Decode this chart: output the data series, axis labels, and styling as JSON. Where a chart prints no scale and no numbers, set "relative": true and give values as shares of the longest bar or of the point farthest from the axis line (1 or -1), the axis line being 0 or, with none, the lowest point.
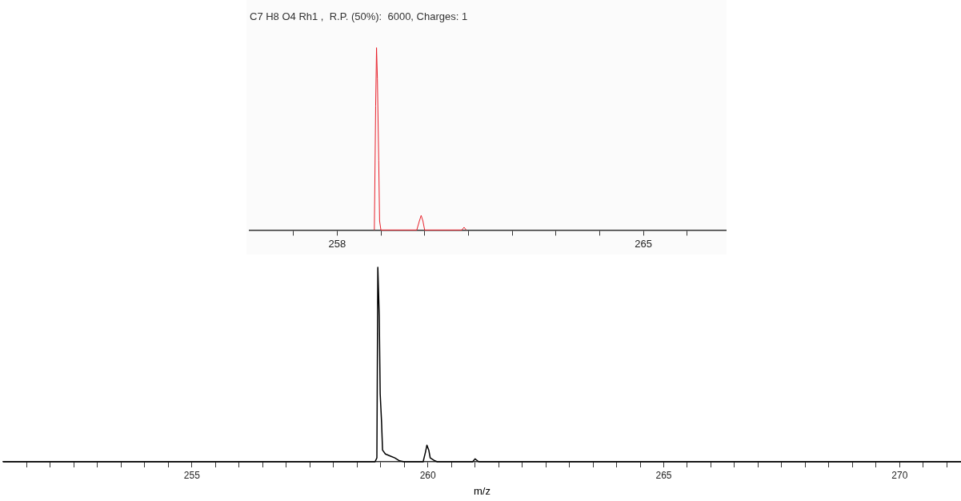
{
  "chart_data": [
    {
      "type": "line",
      "title": "C7 H8 O4 Rh1 ,  R.P. (50%):  6000, Charges: 1",
      "relative": true,
      "xlim": [
        256.0,
        266.9
      ],
      "xticks": [
        {
          "value": 257,
          "label": null
        },
        258,
        {
          "value": 259,
          "label": null
        },
        {
          "value": 260,
          "label": null
        },
        {
          "value": 261,
          "label": null
        },
        {
          "value": 262,
          "label": null
        },
        {
          "value": 263,
          "label": null
        },
        {
          "value": 264,
          "label": null
        },
        265,
        {
          "value": 266,
          "label": null
        }
      ],
      "series": [
        {
          "color": "#e8202a",
          "x": [
            258.85,
            258.88,
            258.9,
            258.92,
            258.95,
            258.97,
            259.0,
            259.82,
            259.88,
            259.92,
            259.96,
            260.0,
            260.85,
            260.9,
            260.95
          ],
          "values": [
            0,
            0.68,
            1.0,
            0.83,
            0.38,
            0.05,
            0,
            0,
            0.05,
            0.08,
            0.05,
            0,
            0,
            0.015,
            0
          ]
        }
      ]
    },
    {
      "type": "line",
      "xlabel": "m/z",
      "relative": true,
      "xlim": [
        251.0,
        271.3
      ],
      "xticks": [
        {
          "value": 251.5,
          "label": null
        },
        {
          "value": 252,
          "label": null
        },
        {
          "value": 252.5,
          "label": null
        },
        {
          "value": 253,
          "label": null
        },
        {
          "value": 253.5,
          "label": null
        },
        {
          "value": 254,
          "label": null
        },
        {
          "value": 254.5,
          "label": null
        },
        255,
        {
          "value": 255.5,
          "label": null
        },
        {
          "value": 256,
          "label": null
        },
        {
          "value": 256.5,
          "label": null
        },
        {
          "value": 257,
          "label": null
        },
        {
          "value": 257.5,
          "label": null
        },
        {
          "value": 258,
          "label": null
        },
        {
          "value": 258.5,
          "label": null
        },
        {
          "value": 259,
          "label": null
        },
        {
          "value": 259.5,
          "label": null
        },
        260,
        {
          "value": 260.5,
          "label": null
        },
        {
          "value": 261,
          "label": null
        },
        {
          "value": 261.5,
          "label": null
        },
        {
          "value": 262,
          "label": null
        },
        {
          "value": 262.5,
          "label": null
        },
        {
          "value": 263,
          "label": null
        },
        {
          "value": 263.5,
          "label": null
        },
        {
          "value": 264,
          "label": null
        },
        {
          "value": 264.5,
          "label": null
        },
        265,
        {
          "value": 265.5,
          "label": null
        },
        {
          "value": 266,
          "label": null
        },
        {
          "value": 266.5,
          "label": null
        },
        {
          "value": 267,
          "label": null
        },
        {
          "value": 267.5,
          "label": null
        },
        {
          "value": 268,
          "label": null
        },
        {
          "value": 268.5,
          "label": null
        },
        {
          "value": 269,
          "label": null
        },
        {
          "value": 269.5,
          "label": null
        },
        270,
        {
          "value": 270.5,
          "label": null
        },
        {
          "value": 271,
          "label": null
        }
      ],
      "series": [
        {
          "color": "#000000",
          "x": [
            251.0,
            258.88,
            258.92,
            258.94,
            258.97,
            258.99,
            259.02,
            259.04,
            259.1,
            259.2,
            259.3,
            259.4,
            259.5,
            259.9,
            259.95,
            259.98,
            260.02,
            260.05,
            260.15,
            260.2,
            260.95,
            261.0,
            261.08,
            271.3
          ],
          "values": [
            0,
            0,
            0.02,
            1.0,
            0.75,
            0.35,
            0.2,
            0.06,
            0.04,
            0.03,
            0.02,
            0.005,
            0,
            0,
            0.05,
            0.085,
            0.06,
            0.02,
            0.005,
            0,
            0,
            0.015,
            0,
            0
          ]
        }
      ]
    }
  ]
}
